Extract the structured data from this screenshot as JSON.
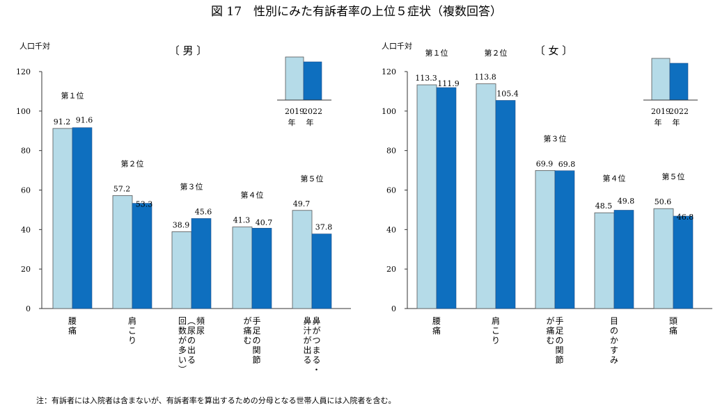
{
  "title": "図 17　性別にみた有訴者率の上位５症状（複数回答）",
  "note": "注：有訴者には入院者は含まないが、有訴者率を算出するための分母となる世帯人員には入院者を含む。",
  "legend": {
    "years": [
      [
        "2019",
        "年"
      ],
      [
        "2022",
        "年"
      ]
    ],
    "colors": [
      "#b5dbe8",
      "#0e6fbf"
    ]
  },
  "chart_data": [
    {
      "type": "bar",
      "subtitle": "〔 男 〕",
      "ylabel": "人口千対",
      "ylim": [
        0,
        120
      ],
      "yticks": [
        0,
        20,
        40,
        60,
        80,
        100,
        120
      ],
      "series_names": [
        "2019年",
        "2022年"
      ],
      "categories": [
        {
          "rank": "第１位",
          "label": [
            "腰",
            "痛"
          ],
          "values": [
            91.2,
            91.6
          ]
        },
        {
          "rank": "第２位",
          "label": [
            "肩",
            "こ",
            "り"
          ],
          "values": [
            57.2,
            53.3
          ]
        },
        {
          "rank": "第３位",
          "label": [
            "頻",
            "尿",
            "（",
            "尿",
            "の",
            "出",
            "る",
            "回",
            "数",
            "が",
            "多",
            "い",
            "）"
          ],
          "columns": [
            [
              "頻",
              "尿"
            ],
            [
              "︵",
              "尿",
              "の",
              "出",
              "る"
            ],
            [
              "回",
              "数",
              "が",
              "多",
              "い",
              "︶"
            ]
          ],
          "values": [
            38.9,
            45.6
          ]
        },
        {
          "rank": "第４位",
          "label": [
            "手",
            "足",
            "の",
            "関",
            "節",
            "が",
            "痛",
            "む"
          ],
          "columns": [
            [
              "手",
              "足",
              "の",
              "関",
              "節"
            ],
            [
              "が",
              "痛",
              "む"
            ]
          ],
          "values": [
            41.3,
            40.7
          ]
        },
        {
          "rank": "第５位",
          "label": [
            "鼻",
            "が",
            "つ",
            "ま",
            "る",
            "・",
            "鼻",
            "汁",
            "が",
            "出",
            "る"
          ],
          "columns": [
            [
              "鼻",
              "が",
              "つ",
              "ま",
              "る",
              "・"
            ],
            [
              "鼻",
              "汁",
              "が",
              "出",
              "る"
            ]
          ],
          "values": [
            49.7,
            37.8
          ]
        }
      ]
    },
    {
      "type": "bar",
      "subtitle": "〔 女 〕",
      "ylabel": "人口千対",
      "ylim": [
        0,
        120
      ],
      "yticks": [
        0,
        20,
        40,
        60,
        80,
        100,
        120
      ],
      "series_names": [
        "2019年",
        "2022年"
      ],
      "categories": [
        {
          "rank": "第１位",
          "label": [
            "腰",
            "痛"
          ],
          "values": [
            113.3,
            111.9
          ]
        },
        {
          "rank": "第２位",
          "label": [
            "肩",
            "こ",
            "り"
          ],
          "values": [
            113.8,
            105.4
          ]
        },
        {
          "rank": "第３位",
          "label": [
            "手",
            "足",
            "の",
            "関",
            "節",
            "が",
            "痛",
            "む"
          ],
          "columns": [
            [
              "手",
              "足",
              "の",
              "関",
              "節"
            ],
            [
              "が",
              "痛",
              "む"
            ]
          ],
          "values": [
            69.9,
            69.8
          ]
        },
        {
          "rank": "第４位",
          "label": [
            "目",
            "の",
            "か",
            "す",
            "み"
          ],
          "values": [
            48.5,
            49.8
          ]
        },
        {
          "rank": "第５位",
          "label": [
            "頭",
            "痛"
          ],
          "values": [
            50.6,
            46.8
          ]
        }
      ]
    }
  ]
}
